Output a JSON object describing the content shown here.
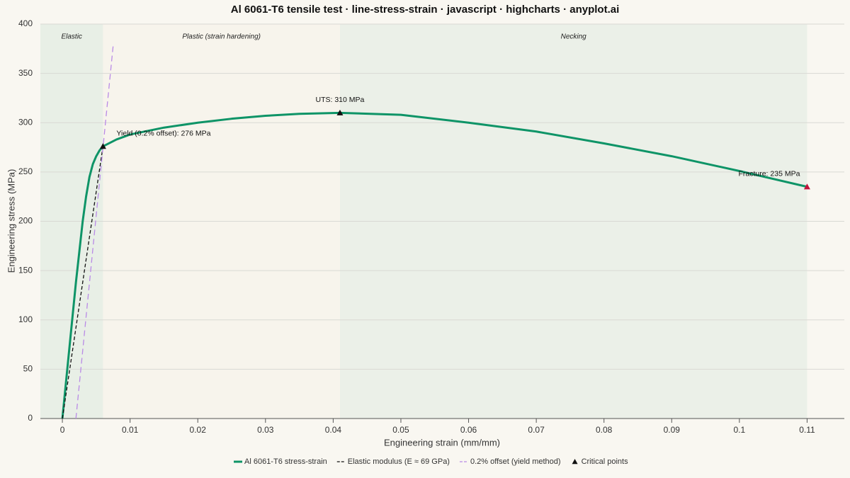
{
  "chart_data": {
    "type": "line",
    "title": "Al 6061-T6 tensile test · line-stress-strain · javascript · highcharts · anyplot.ai",
    "x_label": "Engineering strain (mm/mm)",
    "y_label": "Engineering stress (MPa)",
    "xlim": [
      -0.00325,
      0.1155
    ],
    "ylim": [
      0,
      400
    ],
    "xticks": [
      0,
      0.01,
      0.02,
      0.03,
      0.04,
      0.05,
      0.06,
      0.07,
      0.08,
      0.09,
      0.1,
      0.11
    ],
    "yticks": [
      0,
      50,
      100,
      150,
      200,
      250,
      300,
      350,
      400
    ],
    "grid": true,
    "bands": [
      {
        "label": "Elastic",
        "from": -0.00325,
        "to": 0.006,
        "color": "#e8efe6"
      },
      {
        "label": "Plastic (strain hardening)",
        "from": 0.006,
        "to": 0.041,
        "color": "#f7f4ec"
      },
      {
        "label": "Necking",
        "from": 0.041,
        "to": 0.11,
        "color": "#ebf0e8"
      }
    ],
    "series": [
      {
        "name": "Al 6061-T6 stress-strain",
        "type": "line",
        "color": "#0e9467",
        "width": 3,
        "x": [
          0,
          0.001,
          0.002,
          0.003,
          0.0035,
          0.004,
          0.0045,
          0.005,
          0.0055,
          0.006,
          0.008,
          0.01,
          0.015,
          0.02,
          0.025,
          0.03,
          0.035,
          0.041,
          0.05,
          0.06,
          0.07,
          0.08,
          0.09,
          0.1,
          0.11
        ],
        "values": [
          0,
          69,
          138,
          200,
          225,
          245,
          258,
          266,
          272,
          276,
          283,
          288,
          295,
          300,
          304,
          307,
          309,
          310,
          308,
          300,
          291,
          279,
          266,
          251,
          235
        ]
      },
      {
        "name": "Elastic modulus (E ≈ 69 GPa)",
        "type": "line",
        "color": "#111111",
        "width": 1.3,
        "dash": "5,3",
        "x": [
          0,
          0.006
        ],
        "values": [
          0,
          276
        ]
      },
      {
        "name": "0.2% offset (yield method)",
        "type": "line",
        "color": "#b98ae6",
        "width": 1.3,
        "dash": "8,5",
        "x": [
          0.002,
          0.0075
        ],
        "values": [
          0,
          378
        ]
      },
      {
        "name": "Critical points",
        "type": "scatter",
        "color": "#111111",
        "colors": [
          "#111111",
          "#111111",
          "#c0143c"
        ],
        "x": [
          0.006,
          0.041,
          0.11
        ],
        "values": [
          276,
          310,
          235
        ],
        "value_labels": [
          "Yield (0.2% offset): 276 MPa",
          "UTS: 310 MPa",
          "Fracture: 235 MPa"
        ]
      }
    ]
  }
}
